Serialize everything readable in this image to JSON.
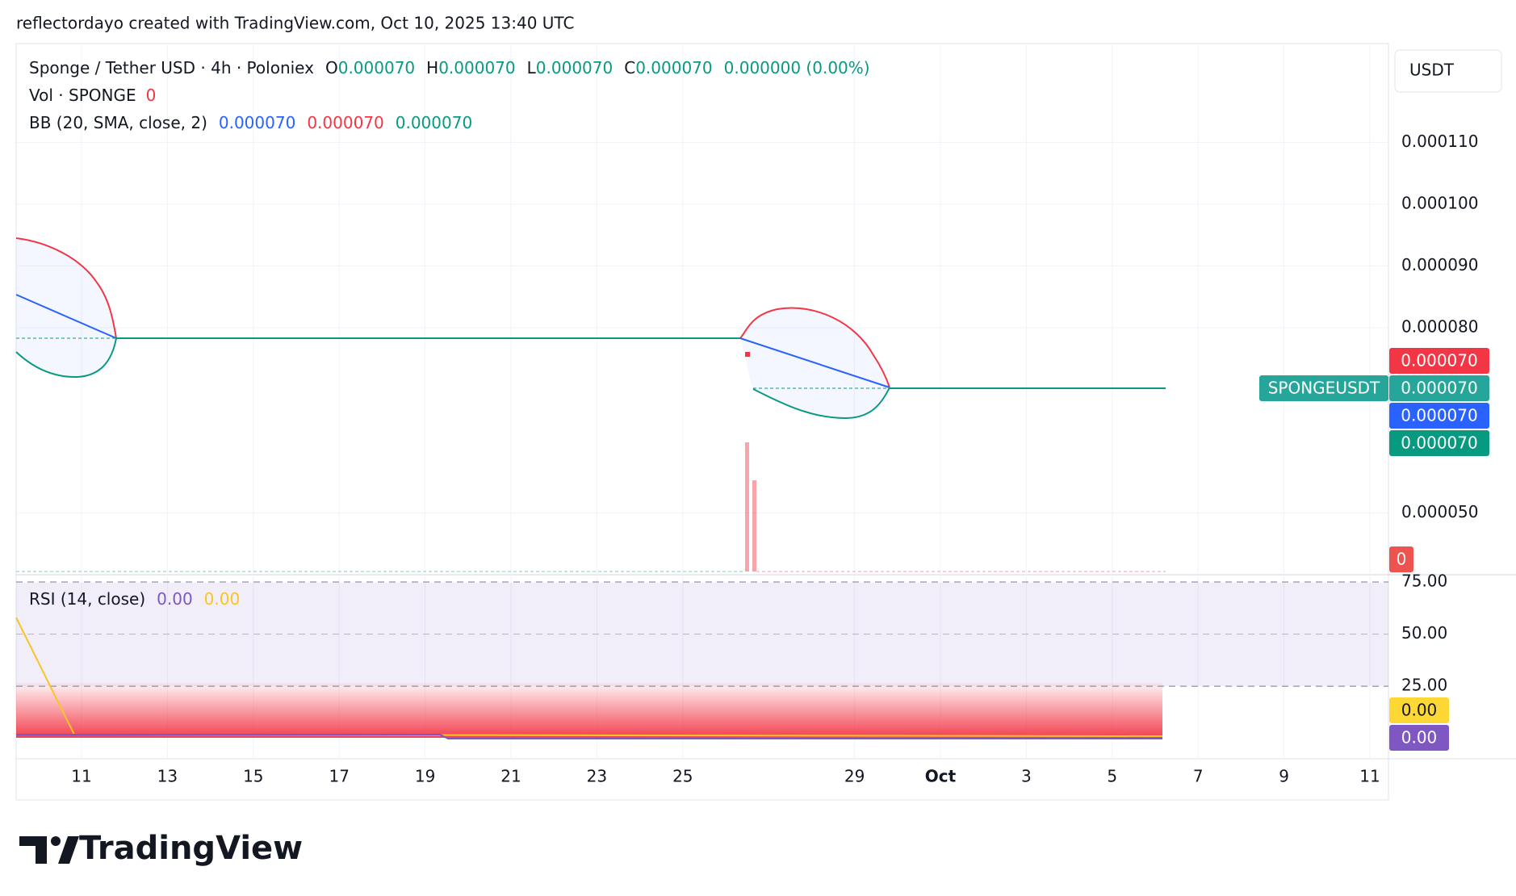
{
  "header": "reflectordayo created with TradingView.com, Oct 10, 2025 13:40 UTC",
  "legend": {
    "symbol": "Sponge / Tether USD · 4h · Poloniex",
    "ohlc": [
      {
        "key": "O",
        "value": "0.000070"
      },
      {
        "key": "H",
        "value": "0.000070"
      },
      {
        "key": "L",
        "value": "0.000070"
      },
      {
        "key": "C",
        "value": "0.000070"
      }
    ],
    "change": "0.000000 (0.00%)",
    "volume": {
      "name": "Vol · SPONGE",
      "value": "0"
    },
    "bb": {
      "name": "BB (20, SMA, close, 2)",
      "values": [
        "0.000070",
        "0.000070",
        "0.000070"
      ]
    },
    "rsi": {
      "name": "RSI (14, close)",
      "values": [
        "0.00",
        "0.00"
      ]
    }
  },
  "currency": "USDT",
  "chart_data": {
    "type": "line",
    "ylim": [
      4e-05,
      0.000126
    ],
    "yticks": [
      {
        "value": 0.00011,
        "label": "0.000110"
      },
      {
        "value": 0.0001,
        "label": "0.000100"
      },
      {
        "value": 9e-05,
        "label": "0.000090"
      },
      {
        "value": 8e-05,
        "label": "0.000080"
      },
      {
        "value": 5e-05,
        "label": "0.000050"
      }
    ],
    "categories": [
      "11",
      "13",
      "15",
      "17",
      "19",
      "21",
      "23",
      "25",
      "29",
      "Oct",
      "3",
      "5",
      "7",
      "9",
      "11"
    ],
    "y2lim": [
      -9.8,
      78.5
    ],
    "y2ticks": [
      {
        "value": 75,
        "label": "75.00"
      },
      {
        "value": 50,
        "label": "50.00"
      },
      {
        "value": 25,
        "label": "25.00"
      }
    ],
    "grid": true
  },
  "price_badges": {
    "bb_upper": "0.000070",
    "symbol_name": "SPONGEUSDT",
    "last": "0.000070",
    "bb_basis": "0.000070",
    "bb_lower": "0.000070",
    "volume": "0",
    "rsi": "0.00",
    "rsi_ma": "0.00"
  },
  "footer": "TradingView"
}
